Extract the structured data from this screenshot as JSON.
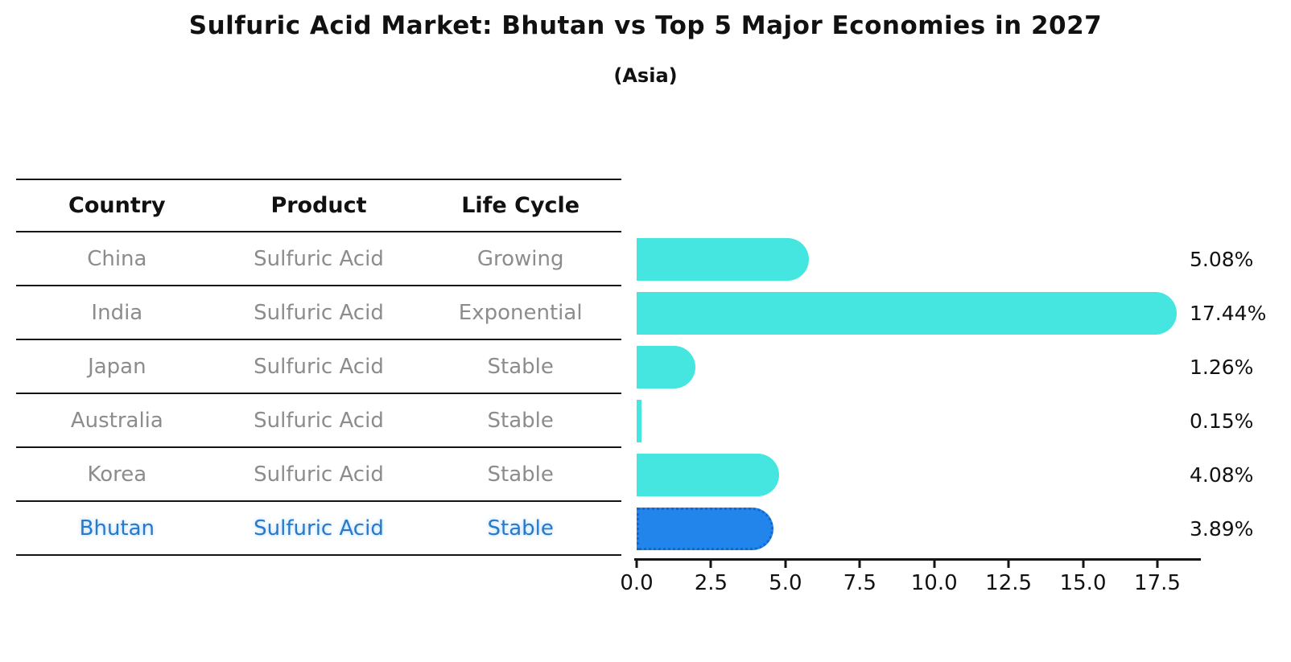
{
  "title": "Sulfuric Acid Market: Bhutan vs Top 5 Major Economies in 2027",
  "subtitle": "(Asia)",
  "table": {
    "headers": [
      "Country",
      "Product",
      "Life Cycle"
    ],
    "rows": [
      [
        "China",
        "Sulfuric Acid",
        "Growing"
      ],
      [
        "India",
        "Sulfuric Acid",
        "Exponential"
      ],
      [
        "Japan",
        "Sulfuric Acid",
        "Stable"
      ],
      [
        "Australia",
        "Sulfuric Acid",
        "Stable"
      ],
      [
        "Korea",
        "Sulfuric Acid",
        "Stable"
      ],
      [
        "Bhutan",
        "Sulfuric Acid",
        "Stable"
      ]
    ]
  },
  "chart_data": {
    "type": "bar",
    "orientation": "horizontal",
    "title": "Sulfuric Acid Market: Bhutan vs Top 5 Major Economies in 2027",
    "subtitle": "(Asia)",
    "categories": [
      "China",
      "India",
      "Japan",
      "Australia",
      "Korea",
      "Bhutan"
    ],
    "values": [
      5.08,
      17.44,
      1.26,
      0.15,
      4.08,
      3.89
    ],
    "value_labels": [
      "5.08%",
      "17.44%",
      "1.26%",
      "0.15%",
      "4.08%",
      "3.89%"
    ],
    "highlight_category": "Bhutan",
    "highlight_index": 5,
    "x_ticks": [
      0.0,
      2.5,
      5.0,
      7.5,
      10.0,
      12.5,
      15.0,
      17.5
    ],
    "x_tick_labels": [
      "0.0",
      "2.5",
      "5.0",
      "7.5",
      "10.0",
      "12.5",
      "15.0",
      "17.5"
    ],
    "xlim": [
      0,
      19.0
    ],
    "grid": false,
    "legend": false,
    "colors": {
      "bar": "#45E6E0",
      "highlight_bar": "#2185EB",
      "highlight_border": "#1668C8",
      "highlight_text": "#2979C9",
      "row_text": "#8C8C8C",
      "header_text": "#111111",
      "value_text": "#111111",
      "axis": "#141414"
    }
  }
}
